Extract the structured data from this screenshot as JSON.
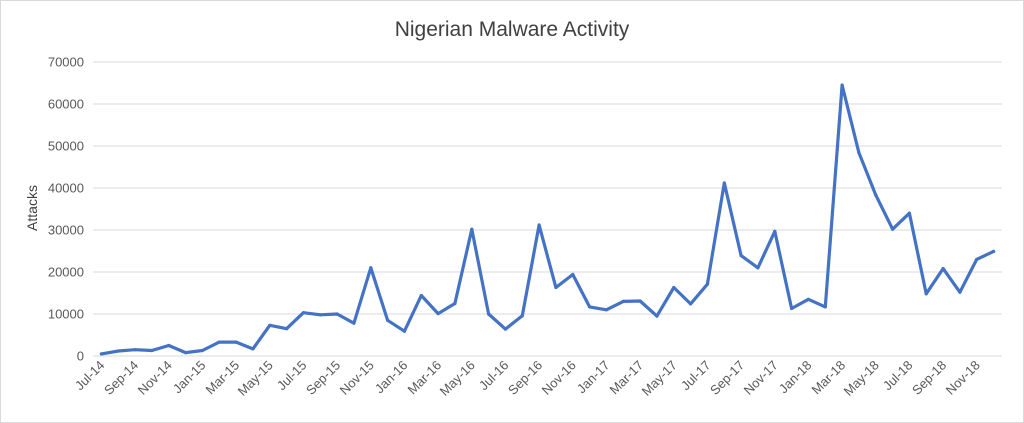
{
  "chart_data": {
    "type": "line",
    "title": "Nigerian Malware Activity",
    "xlabel": "",
    "ylabel": "Attacks",
    "ylim": [
      0,
      70000
    ],
    "yticks": [
      0,
      10000,
      20000,
      30000,
      40000,
      50000,
      60000,
      70000
    ],
    "grid": true,
    "legend": "none",
    "line_color": "#4472c4",
    "x": [
      "Jul-14",
      "Aug-14",
      "Sep-14",
      "Oct-14",
      "Nov-14",
      "Dec-14",
      "Jan-15",
      "Feb-15",
      "Mar-15",
      "Apr-15",
      "May-15",
      "Jun-15",
      "Jul-15",
      "Aug-15",
      "Sep-15",
      "Oct-15",
      "Nov-15",
      "Dec-15",
      "Jan-16",
      "Feb-16",
      "Mar-16",
      "Apr-16",
      "May-16",
      "Jun-16",
      "Jul-16",
      "Aug-16",
      "Sep-16",
      "Oct-16",
      "Nov-16",
      "Dec-16",
      "Jan-17",
      "Feb-17",
      "Mar-17",
      "Apr-17",
      "May-17",
      "Jun-17",
      "Jul-17",
      "Aug-17",
      "Sep-17",
      "Oct-17",
      "Nov-17",
      "Dec-17",
      "Jan-18",
      "Feb-18",
      "Mar-18",
      "Apr-18",
      "May-18",
      "Jun-18",
      "Jul-18",
      "Aug-18",
      "Sep-18",
      "Oct-18",
      "Nov-18",
      "Dec-18"
    ],
    "x_tick_labels": [
      "Jul-14",
      "Sep-14",
      "Nov-14",
      "Jan-15",
      "Mar-15",
      "May-15",
      "Jul-15",
      "Sep-15",
      "Nov-15",
      "Jan-16",
      "Mar-16",
      "May-16",
      "Jul-16",
      "Sep-16",
      "Nov-16",
      "Jan-17",
      "Mar-17",
      "May-17",
      "Jul-17",
      "Sep-17",
      "Nov-17",
      "Jan-18",
      "Mar-18",
      "May-18",
      "Jul-18",
      "Sep-18",
      "Nov-18"
    ],
    "series": [
      {
        "values": [
          500,
          1200,
          1500,
          1300,
          2500,
          800,
          1300,
          3300,
          3300,
          1700,
          7300,
          6500,
          10300,
          9800,
          10000,
          7800,
          21000,
          8500,
          5900,
          14400,
          10100,
          12500,
          30200,
          10000,
          6400,
          9600,
          31200,
          16300,
          19400,
          11700,
          11000,
          13000,
          13100,
          9500,
          16300,
          12400,
          17100,
          41200,
          23900,
          21000,
          29700,
          11300,
          13500,
          11700,
          64500,
          48400,
          38300,
          30200,
          34000,
          14800,
          20800,
          15200,
          23000,
          24900
        ]
      }
    ]
  }
}
